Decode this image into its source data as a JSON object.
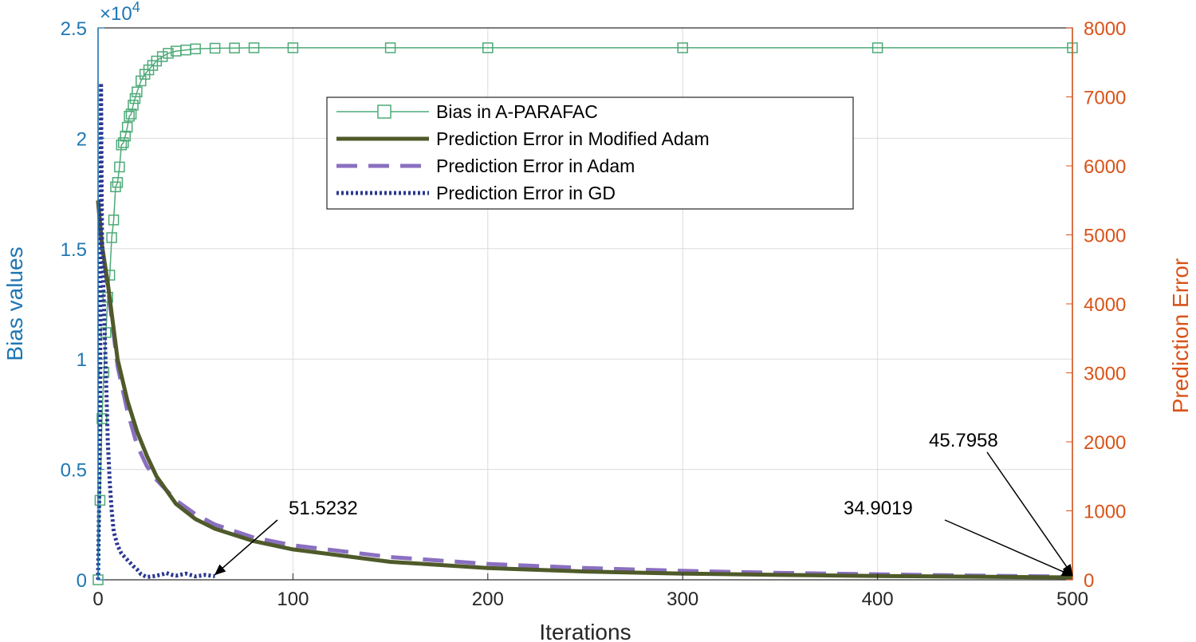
{
  "chart_data": {
    "type": "line",
    "x_range": [
      0,
      500
    ],
    "left_axis": {
      "label": "Bias values",
      "range": [
        0,
        25000
      ],
      "tick_values": [
        0,
        5000,
        10000,
        15000,
        20000,
        25000
      ],
      "tick_labels": [
        "0",
        "0.5",
        "1",
        "1.5",
        "2",
        "2.5"
      ],
      "exponent_prefix": "×10",
      "exponent_power": "4",
      "color": "#1f77b4"
    },
    "right_axis": {
      "label": "Prediction Error",
      "range": [
        0,
        8000
      ],
      "tick_values": [
        0,
        1000,
        2000,
        3000,
        4000,
        5000,
        6000,
        7000,
        8000
      ],
      "tick_labels": [
        "0",
        "1000",
        "2000",
        "3000",
        "4000",
        "5000",
        "6000",
        "7000",
        "8000"
      ],
      "color": "#d95319"
    },
    "x_axis": {
      "label": "Iterations",
      "tick_values": [
        0,
        100,
        200,
        300,
        400,
        500
      ],
      "tick_labels": [
        "0",
        "100",
        "200",
        "300",
        "400",
        "500"
      ]
    },
    "grid": true,
    "legend_position": "top-center",
    "series": [
      {
        "name": "Bias in A-PARAFAC",
        "axis": "left",
        "color": "#4daa78",
        "style": "solid-square-markers",
        "x": [
          0,
          1,
          2,
          3,
          4,
          5,
          6,
          7,
          8,
          9,
          10,
          11,
          12,
          13,
          14,
          15,
          16,
          17,
          18,
          19,
          20,
          22,
          24,
          26,
          28,
          30,
          33,
          36,
          40,
          45,
          50,
          60,
          70,
          80,
          100,
          150,
          200,
          300,
          400,
          500
        ],
        "y": [
          0,
          3600,
          7300,
          9400,
          11200,
          12800,
          13800,
          15500,
          16300,
          17800,
          18000,
          18700,
          19700,
          19800,
          20100,
          20500,
          21000,
          21100,
          21500,
          21800,
          22100,
          22600,
          22900,
          23100,
          23300,
          23500,
          23700,
          23850,
          23950,
          24000,
          24050,
          24080,
          24090,
          24100,
          24100,
          24100,
          24100,
          24100,
          24100,
          24100
        ]
      },
      {
        "name": "Prediction Error in Modified Adam",
        "axis": "right",
        "color": "#4f5a2a",
        "style": "solid-thick",
        "x": [
          0,
          2,
          5,
          10,
          15,
          20,
          25,
          30,
          40,
          50,
          60,
          80,
          100,
          150,
          200,
          250,
          300,
          350,
          400,
          450,
          500
        ],
        "y": [
          5500,
          4850,
          4300,
          3200,
          2600,
          2150,
          1800,
          1500,
          1100,
          880,
          740,
          560,
          440,
          260,
          170,
          120,
          90,
          70,
          55,
          45,
          34.9
        ]
      },
      {
        "name": "Prediction Error in Adam",
        "axis": "right",
        "color": "#8a6fc0",
        "style": "dashed",
        "x": [
          0,
          2,
          5,
          10,
          15,
          20,
          25,
          30,
          40,
          50,
          60,
          80,
          100,
          150,
          200,
          250,
          300,
          350,
          400,
          450,
          500
        ],
        "y": [
          5500,
          4800,
          4250,
          3100,
          2450,
          1950,
          1650,
          1450,
          1150,
          950,
          800,
          610,
          500,
          330,
          230,
          170,
          130,
          100,
          80,
          60,
          45.8
        ]
      },
      {
        "name": "Prediction Error in GD",
        "axis": "right",
        "color": "#2a3790",
        "style": "dotted",
        "x": [
          0,
          1,
          1.5,
          2,
          3,
          4,
          5,
          6,
          7,
          8,
          10,
          12,
          14,
          16,
          18,
          20,
          22,
          25,
          28,
          30,
          33,
          35,
          38,
          40,
          45,
          50,
          55,
          60
        ],
        "y": [
          0,
          2000,
          7200,
          5000,
          4000,
          3000,
          2000,
          1400,
          1000,
          700,
          500,
          380,
          320,
          260,
          200,
          150,
          80,
          40,
          50,
          60,
          80,
          100,
          70,
          60,
          90,
          50,
          70,
          51.5
        ]
      }
    ],
    "annotations": [
      {
        "text": "51.5232",
        "x": 60,
        "y": 51.5
      },
      {
        "text": "34.9019",
        "x": 500,
        "y": 34.9
      },
      {
        "text": "45.7958",
        "x": 500,
        "y": 45.8
      }
    ]
  }
}
